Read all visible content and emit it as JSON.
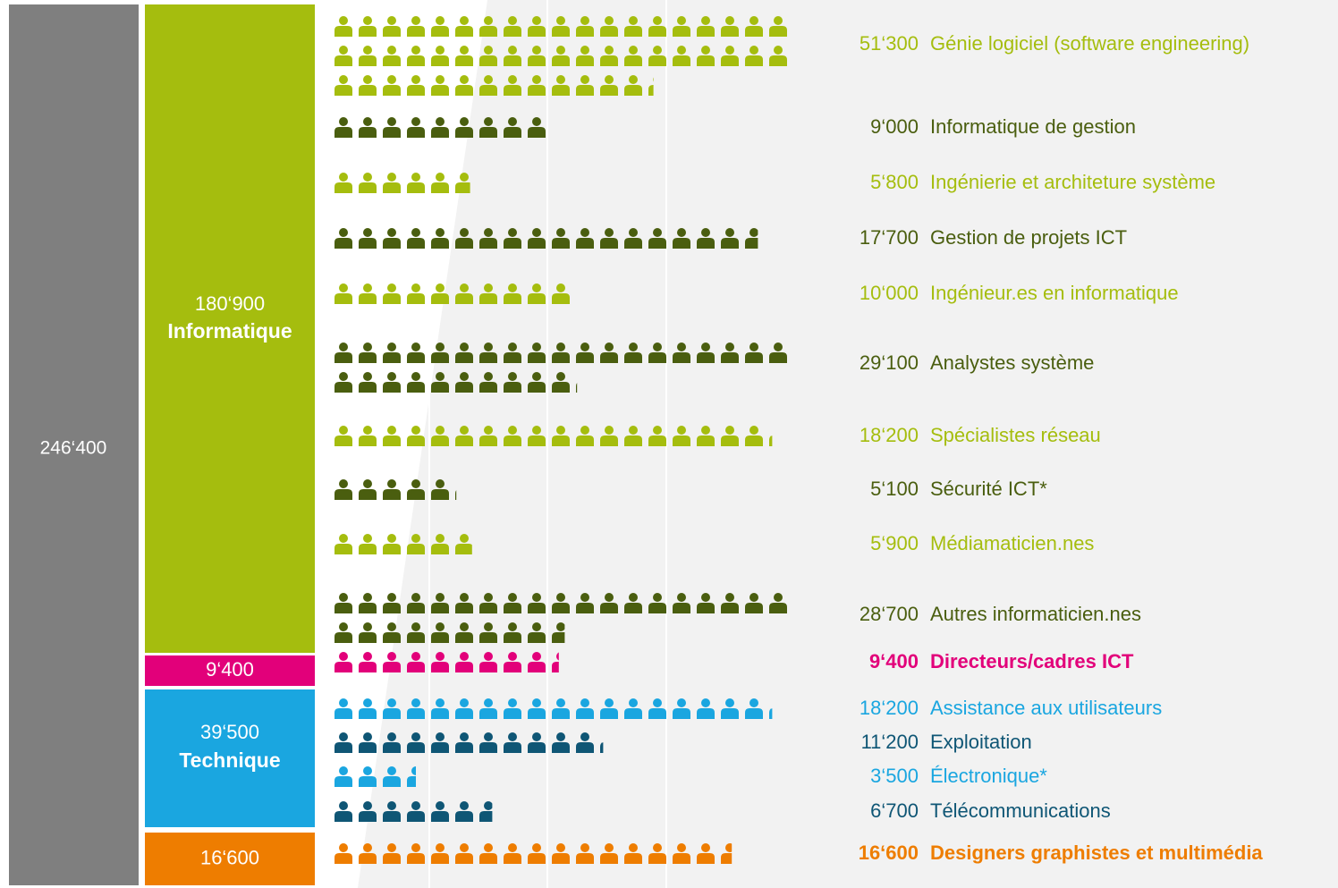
{
  "chart_data": {
    "type": "pictogram",
    "total_value": 246400,
    "total_label": "246‘400",
    "total_color": "#7f7f7f",
    "groups": [
      {
        "label": "Informatique",
        "value": 180900,
        "value_label": "180‘900",
        "color": "#a5bd0e"
      },
      {
        "value": 9400,
        "value_label": "9‘400",
        "color": "#e2007a"
      },
      {
        "label": "Technique",
        "value": 39500,
        "value_label": "39‘500",
        "color": "#1aa6e0"
      },
      {
        "value": 16600,
        "value_label": "16‘600",
        "color": "#ee7d00"
      }
    ],
    "categories": [
      "Génie logiciel (software engineering)",
      "Informatique de gestion",
      "Ingénierie et architeture système",
      "Gestion de projets ICT",
      "Ingénieur.es en informatique",
      "Analystes système",
      "Spécialistes réseau",
      "Sécurité ICT*",
      "Médiamaticien.nes",
      "Autres informaticien.nes",
      "Directeurs/cadres ICT",
      "Assistance aux utilisateurs",
      "Exploitation",
      "Électronique*",
      "Télécommunications",
      "Designers graphistes et multimédia"
    ],
    "values": [
      51300,
      9000,
      5800,
      17700,
      10000,
      29100,
      18200,
      5100,
      5900,
      28700,
      9400,
      18200,
      11200,
      3500,
      6700,
      16600
    ],
    "value_labels": [
      "51‘300",
      "9‘000",
      "5‘800",
      "17‘700",
      "10‘000",
      "29‘100",
      "18‘200",
      "5‘100",
      "5‘900",
      "28‘700",
      "9‘400",
      "18‘200",
      "11‘200",
      "3‘500",
      "6‘700",
      "16‘600"
    ],
    "colors": [
      "#a5bd0e",
      "#4a5e0f",
      "#a5bd0e",
      "#4a5e0f",
      "#a5bd0e",
      "#4a5e0f",
      "#a5bd0e",
      "#4a5e0f",
      "#a5bd0e",
      "#4a5e0f",
      "#e2007a",
      "#1aa6e0",
      "#0f5675",
      "#1aa6e0",
      "#0f5675",
      "#ee7d00"
    ],
    "bold": [
      false,
      false,
      false,
      false,
      false,
      false,
      false,
      false,
      false,
      false,
      true,
      false,
      false,
      false,
      false,
      true
    ]
  }
}
